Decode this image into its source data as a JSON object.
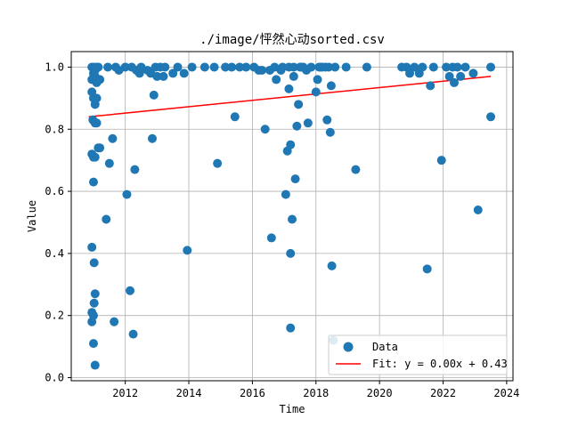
{
  "chart_data": {
    "type": "scatter",
    "title": "./image/怦然心动sorted.csv",
    "xlabel": "Time",
    "ylabel": "Value",
    "xlim": [
      2010.3,
      2024.2
    ],
    "ylim": [
      -0.01,
      1.05
    ],
    "xticks": [
      2012,
      2014,
      2016,
      2018,
      2020,
      2022,
      2024
    ],
    "yticks": [
      0.0,
      0.2,
      0.4,
      0.6,
      0.8,
      1.0
    ],
    "xtick_labels": [
      "2012",
      "2014",
      "2016",
      "2018",
      "2020",
      "2022",
      "2024"
    ],
    "ytick_labels": [
      "0.0",
      "0.2",
      "0.4",
      "0.6",
      "0.8",
      "1.0"
    ],
    "grid": true,
    "legend_position": "lower-right",
    "colors": {
      "data": "#1f77b4",
      "fit": "#ff0000",
      "grid": "#b0b0b0"
    },
    "series": [
      {
        "name": "Data",
        "kind": "scatter",
        "points": [
          [
            2010.95,
            1.0
          ],
          [
            2011.0,
            1.0
          ],
          [
            2011.05,
            0.99
          ],
          [
            2011.1,
            1.0
          ],
          [
            2011.15,
            1.0
          ],
          [
            2011.0,
            0.98
          ],
          [
            2010.95,
            0.96
          ],
          [
            2011.05,
            0.97
          ],
          [
            2011.1,
            0.95
          ],
          [
            2011.2,
            0.96
          ],
          [
            2010.95,
            0.92
          ],
          [
            2011.0,
            0.9
          ],
          [
            2011.05,
            0.88
          ],
          [
            2011.1,
            0.9
          ],
          [
            2010.98,
            0.83
          ],
          [
            2011.05,
            0.82
          ],
          [
            2011.1,
            0.82
          ],
          [
            2011.15,
            0.74
          ],
          [
            2011.2,
            0.74
          ],
          [
            2010.95,
            0.72
          ],
          [
            2011.0,
            0.71
          ],
          [
            2011.05,
            0.71
          ],
          [
            2011.0,
            0.63
          ],
          [
            2010.95,
            0.42
          ],
          [
            2011.02,
            0.37
          ],
          [
            2011.05,
            0.27
          ],
          [
            2011.02,
            0.24
          ],
          [
            2010.95,
            0.21
          ],
          [
            2011.0,
            0.2
          ],
          [
            2010.95,
            0.18
          ],
          [
            2011.0,
            0.11
          ],
          [
            2011.05,
            0.04
          ],
          [
            2011.4,
            0.51
          ],
          [
            2011.45,
            1.0
          ],
          [
            2011.5,
            0.69
          ],
          [
            2011.6,
            0.77
          ],
          [
            2011.65,
            0.18
          ],
          [
            2011.7,
            1.0
          ],
          [
            2011.8,
            0.99
          ],
          [
            2012.0,
            1.0
          ],
          [
            2012.05,
            0.59
          ],
          [
            2012.15,
            0.28
          ],
          [
            2012.2,
            1.0
          ],
          [
            2012.25,
            0.14
          ],
          [
            2012.3,
            0.67
          ],
          [
            2012.35,
            0.99
          ],
          [
            2012.45,
            0.98
          ],
          [
            2012.5,
            1.0
          ],
          [
            2012.7,
            0.99
          ],
          [
            2012.8,
            0.98
          ],
          [
            2012.85,
            0.77
          ],
          [
            2012.9,
            0.91
          ],
          [
            2012.95,
            1.0
          ],
          [
            2013.0,
            0.97
          ],
          [
            2013.1,
            1.0
          ],
          [
            2013.2,
            0.97
          ],
          [
            2013.25,
            1.0
          ],
          [
            2013.5,
            0.98
          ],
          [
            2013.65,
            1.0
          ],
          [
            2013.85,
            0.98
          ],
          [
            2013.95,
            0.41
          ],
          [
            2014.1,
            1.0
          ],
          [
            2014.5,
            1.0
          ],
          [
            2014.8,
            1.0
          ],
          [
            2014.9,
            0.69
          ],
          [
            2015.15,
            1.0
          ],
          [
            2015.35,
            1.0
          ],
          [
            2015.45,
            0.84
          ],
          [
            2015.6,
            1.0
          ],
          [
            2015.8,
            1.0
          ],
          [
            2016.05,
            1.0
          ],
          [
            2016.2,
            0.99
          ],
          [
            2016.3,
            0.99
          ],
          [
            2016.4,
            0.8
          ],
          [
            2016.55,
            0.99
          ],
          [
            2016.6,
            0.45
          ],
          [
            2016.7,
            1.0
          ],
          [
            2016.75,
            0.96
          ],
          [
            2016.9,
            0.99
          ],
          [
            2016.95,
            1.0
          ],
          [
            2017.05,
            0.59
          ],
          [
            2017.1,
            0.73
          ],
          [
            2017.15,
            1.0
          ],
          [
            2017.15,
            0.93
          ],
          [
            2017.2,
            0.75
          ],
          [
            2017.2,
            0.4
          ],
          [
            2017.2,
            0.16
          ],
          [
            2017.25,
            0.51
          ],
          [
            2017.3,
            0.97
          ],
          [
            2017.3,
            1.0
          ],
          [
            2017.35,
            0.64
          ],
          [
            2017.4,
            0.81
          ],
          [
            2017.45,
            0.88
          ],
          [
            2017.5,
            1.0
          ],
          [
            2017.55,
            1.0
          ],
          [
            2017.6,
            1.0
          ],
          [
            2017.7,
            0.99
          ],
          [
            2017.75,
            0.82
          ],
          [
            2017.85,
            1.0
          ],
          [
            2018.0,
            0.92
          ],
          [
            2018.05,
            0.96
          ],
          [
            2018.1,
            1.0
          ],
          [
            2018.15,
            1.0
          ],
          [
            2018.2,
            1.0
          ],
          [
            2018.3,
            1.0
          ],
          [
            2018.35,
            0.83
          ],
          [
            2018.4,
            1.0
          ],
          [
            2018.45,
            0.79
          ],
          [
            2018.48,
            0.94
          ],
          [
            2018.5,
            0.36
          ],
          [
            2018.55,
            0.12
          ],
          [
            2018.6,
            1.0
          ],
          [
            2018.95,
            1.0
          ],
          [
            2019.25,
            0.67
          ],
          [
            2019.6,
            1.0
          ],
          [
            2020.7,
            1.0
          ],
          [
            2020.85,
            1.0
          ],
          [
            2020.95,
            0.98
          ],
          [
            2021.1,
            1.0
          ],
          [
            2021.25,
            0.98
          ],
          [
            2021.35,
            1.0
          ],
          [
            2021.5,
            0.35
          ],
          [
            2021.6,
            0.94
          ],
          [
            2021.7,
            1.0
          ],
          [
            2021.95,
            0.7
          ],
          [
            2022.1,
            1.0
          ],
          [
            2022.2,
            0.97
          ],
          [
            2022.3,
            1.0
          ],
          [
            2022.35,
            0.95
          ],
          [
            2022.45,
            1.0
          ],
          [
            2022.55,
            0.97
          ],
          [
            2022.7,
            1.0
          ],
          [
            2022.95,
            0.98
          ],
          [
            2023.1,
            0.54
          ],
          [
            2023.5,
            1.0
          ],
          [
            2023.5,
            0.84
          ]
        ]
      },
      {
        "name": "Fit: y = 0.00x + 0.43",
        "kind": "line",
        "points": [
          [
            2010.85,
            0.84
          ],
          [
            2023.5,
            0.97
          ]
        ]
      }
    ]
  }
}
